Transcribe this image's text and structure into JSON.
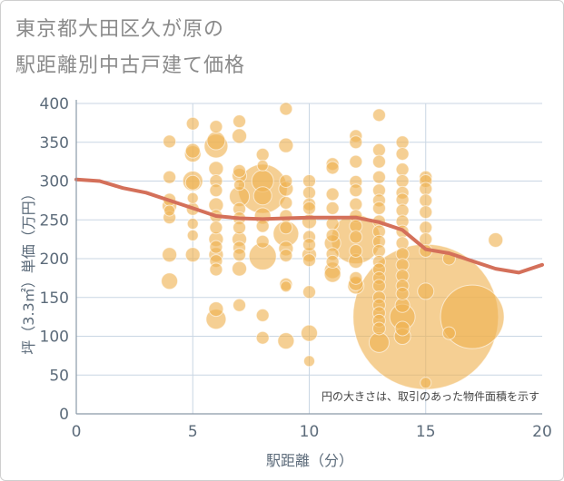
{
  "title_line1": "東京都大田区久が原の",
  "title_line2": "駅距離別中古戸建て価格",
  "chart_data": {
    "type": "scatter",
    "xlabel": "駅距離（分）",
    "ylabel": "坪（3.3㎡）単価（万円）",
    "xlim": [
      0,
      20
    ],
    "ylim": [
      0,
      400
    ],
    "xticks": [
      0,
      5,
      10,
      15,
      20
    ],
    "yticks": [
      0,
      50,
      100,
      150,
      200,
      250,
      300,
      350,
      400
    ],
    "grid": true,
    "note": "円の大きさは、取引のあった物件面積を示す",
    "colors": {
      "bubble": "#efb251",
      "line": "#d4705a",
      "grid": "#c9d6e3"
    },
    "trend_line": {
      "x": [
        0,
        1,
        2,
        3,
        4,
        5,
        6,
        7,
        8,
        9,
        10,
        11,
        12,
        13,
        14,
        15,
        16,
        17,
        18,
        19,
        20
      ],
      "y": [
        302,
        300,
        291,
        285,
        275,
        265,
        255,
        252,
        251,
        252,
        253,
        253,
        253,
        247,
        237,
        212,
        207,
        197,
        187,
        182,
        192
      ]
    },
    "points": [
      {
        "x": 4,
        "y": 351,
        "r": 7
      },
      {
        "x": 4,
        "y": 305,
        "r": 7
      },
      {
        "x": 4,
        "y": 276,
        "r": 7
      },
      {
        "x": 4,
        "y": 268,
        "r": 8
      },
      {
        "x": 4,
        "y": 262,
        "r": 6
      },
      {
        "x": 4,
        "y": 253,
        "r": 7
      },
      {
        "x": 4,
        "y": 205,
        "r": 8
      },
      {
        "x": 4,
        "y": 171,
        "r": 9
      },
      {
        "x": 5,
        "y": 374,
        "r": 7
      },
      {
        "x": 5,
        "y": 339,
        "r": 8
      },
      {
        "x": 5,
        "y": 335,
        "r": 9
      },
      {
        "x": 5,
        "y": 300,
        "r": 11
      },
      {
        "x": 5,
        "y": 298,
        "r": 8
      },
      {
        "x": 5,
        "y": 278,
        "r": 6
      },
      {
        "x": 5,
        "y": 264,
        "r": 7
      },
      {
        "x": 5,
        "y": 245,
        "r": 6
      },
      {
        "x": 5,
        "y": 230,
        "r": 6
      },
      {
        "x": 5,
        "y": 205,
        "r": 8
      },
      {
        "x": 6,
        "y": 370,
        "r": 7
      },
      {
        "x": 6,
        "y": 352,
        "r": 10
      },
      {
        "x": 6,
        "y": 345,
        "r": 13
      },
      {
        "x": 6,
        "y": 316,
        "r": 8
      },
      {
        "x": 6,
        "y": 300,
        "r": 7
      },
      {
        "x": 6,
        "y": 288,
        "r": 7
      },
      {
        "x": 6,
        "y": 269,
        "r": 8
      },
      {
        "x": 6,
        "y": 255,
        "r": 7
      },
      {
        "x": 6,
        "y": 240,
        "r": 7
      },
      {
        "x": 6,
        "y": 225,
        "r": 8
      },
      {
        "x": 6,
        "y": 215,
        "r": 7
      },
      {
        "x": 6,
        "y": 205,
        "r": 8
      },
      {
        "x": 6,
        "y": 197,
        "r": 7
      },
      {
        "x": 6,
        "y": 186,
        "r": 7
      },
      {
        "x": 6,
        "y": 135,
        "r": 8
      },
      {
        "x": 6,
        "y": 122,
        "r": 11
      },
      {
        "x": 7,
        "y": 377,
        "r": 7
      },
      {
        "x": 7,
        "y": 358,
        "r": 8
      },
      {
        "x": 7,
        "y": 313,
        "r": 7
      },
      {
        "x": 7,
        "y": 307,
        "r": 8
      },
      {
        "x": 7,
        "y": 295,
        "r": 6
      },
      {
        "x": 7,
        "y": 280,
        "r": 11
      },
      {
        "x": 7,
        "y": 264,
        "r": 7
      },
      {
        "x": 7,
        "y": 252,
        "r": 7
      },
      {
        "x": 7,
        "y": 240,
        "r": 7
      },
      {
        "x": 7,
        "y": 225,
        "r": 8
      },
      {
        "x": 7,
        "y": 214,
        "r": 7
      },
      {
        "x": 7,
        "y": 205,
        "r": 7
      },
      {
        "x": 7,
        "y": 187,
        "r": 8
      },
      {
        "x": 7,
        "y": 140,
        "r": 7
      },
      {
        "x": 8,
        "y": 334,
        "r": 7
      },
      {
        "x": 8,
        "y": 320,
        "r": 6
      },
      {
        "x": 8,
        "y": 300,
        "r": 12
      },
      {
        "x": 8,
        "y": 290,
        "r": 27
      },
      {
        "x": 8,
        "y": 281,
        "r": 10
      },
      {
        "x": 8,
        "y": 255,
        "r": 9
      },
      {
        "x": 8,
        "y": 242,
        "r": 7
      },
      {
        "x": 8,
        "y": 222,
        "r": 7
      },
      {
        "x": 8,
        "y": 203,
        "r": 15
      },
      {
        "x": 8,
        "y": 127,
        "r": 7
      },
      {
        "x": 8,
        "y": 98,
        "r": 7
      },
      {
        "x": 9,
        "y": 393,
        "r": 7
      },
      {
        "x": 9,
        "y": 346,
        "r": 8
      },
      {
        "x": 9,
        "y": 300,
        "r": 7
      },
      {
        "x": 9,
        "y": 290,
        "r": 8
      },
      {
        "x": 9,
        "y": 272,
        "r": 7
      },
      {
        "x": 9,
        "y": 255,
        "r": 7
      },
      {
        "x": 9,
        "y": 240,
        "r": 7
      },
      {
        "x": 9,
        "y": 232,
        "r": 14
      },
      {
        "x": 9,
        "y": 213,
        "r": 8
      },
      {
        "x": 9,
        "y": 204,
        "r": 7
      },
      {
        "x": 9,
        "y": 167,
        "r": 7
      },
      {
        "x": 9,
        "y": 164,
        "r": 6
      },
      {
        "x": 9,
        "y": 94,
        "r": 9
      },
      {
        "x": 10,
        "y": 300,
        "r": 7
      },
      {
        "x": 10,
        "y": 285,
        "r": 7
      },
      {
        "x": 10,
        "y": 270,
        "r": 7
      },
      {
        "x": 10,
        "y": 265,
        "r": 7
      },
      {
        "x": 10,
        "y": 248,
        "r": 8
      },
      {
        "x": 10,
        "y": 228,
        "r": 7
      },
      {
        "x": 10,
        "y": 218,
        "r": 7
      },
      {
        "x": 10,
        "y": 205,
        "r": 8
      },
      {
        "x": 10,
        "y": 198,
        "r": 7
      },
      {
        "x": 10,
        "y": 157,
        "r": 7
      },
      {
        "x": 10,
        "y": 104,
        "r": 9
      },
      {
        "x": 10,
        "y": 68,
        "r": 6
      },
      {
        "x": 11,
        "y": 322,
        "r": 7
      },
      {
        "x": 11,
        "y": 317,
        "r": 7
      },
      {
        "x": 11,
        "y": 283,
        "r": 7
      },
      {
        "x": 11,
        "y": 265,
        "r": 7
      },
      {
        "x": 11,
        "y": 245,
        "r": 7
      },
      {
        "x": 11,
        "y": 230,
        "r": 7
      },
      {
        "x": 11,
        "y": 220,
        "r": 9
      },
      {
        "x": 11,
        "y": 206,
        "r": 7
      },
      {
        "x": 11,
        "y": 196,
        "r": 7
      },
      {
        "x": 11,
        "y": 185,
        "r": 9
      },
      {
        "x": 11,
        "y": 180,
        "r": 9
      },
      {
        "x": 12,
        "y": 358,
        "r": 7
      },
      {
        "x": 12,
        "y": 350,
        "r": 7
      },
      {
        "x": 12,
        "y": 325,
        "r": 7
      },
      {
        "x": 12,
        "y": 299,
        "r": 7
      },
      {
        "x": 12,
        "y": 288,
        "r": 7
      },
      {
        "x": 12,
        "y": 270,
        "r": 7
      },
      {
        "x": 12,
        "y": 255,
        "r": 7
      },
      {
        "x": 12,
        "y": 242,
        "r": 7
      },
      {
        "x": 12,
        "y": 228,
        "r": 7
      },
      {
        "x": 12,
        "y": 225,
        "r": 27
      },
      {
        "x": 12,
        "y": 210,
        "r": 7
      },
      {
        "x": 12,
        "y": 197,
        "r": 8
      },
      {
        "x": 12,
        "y": 175,
        "r": 7
      },
      {
        "x": 12,
        "y": 168,
        "r": 8
      },
      {
        "x": 12,
        "y": 165,
        "r": 9
      },
      {
        "x": 13,
        "y": 385,
        "r": 7
      },
      {
        "x": 13,
        "y": 340,
        "r": 7
      },
      {
        "x": 13,
        "y": 325,
        "r": 7
      },
      {
        "x": 13,
        "y": 305,
        "r": 7
      },
      {
        "x": 13,
        "y": 288,
        "r": 7
      },
      {
        "x": 13,
        "y": 275,
        "r": 7
      },
      {
        "x": 13,
        "y": 265,
        "r": 7
      },
      {
        "x": 13,
        "y": 248,
        "r": 7
      },
      {
        "x": 13,
        "y": 235,
        "r": 7
      },
      {
        "x": 13,
        "y": 222,
        "r": 7
      },
      {
        "x": 13,
        "y": 210,
        "r": 7
      },
      {
        "x": 13,
        "y": 196,
        "r": 7
      },
      {
        "x": 13,
        "y": 186,
        "r": 7
      },
      {
        "x": 13,
        "y": 175,
        "r": 7
      },
      {
        "x": 13,
        "y": 165,
        "r": 7
      },
      {
        "x": 13,
        "y": 150,
        "r": 7
      },
      {
        "x": 13,
        "y": 140,
        "r": 7
      },
      {
        "x": 13,
        "y": 130,
        "r": 7
      },
      {
        "x": 13,
        "y": 120,
        "r": 7
      },
      {
        "x": 13,
        "y": 110,
        "r": 7
      },
      {
        "x": 13,
        "y": 92,
        "r": 11
      },
      {
        "x": 14,
        "y": 350,
        "r": 7
      },
      {
        "x": 14,
        "y": 335,
        "r": 7
      },
      {
        "x": 14,
        "y": 315,
        "r": 7
      },
      {
        "x": 14,
        "y": 300,
        "r": 7
      },
      {
        "x": 14,
        "y": 285,
        "r": 7
      },
      {
        "x": 14,
        "y": 276,
        "r": 7
      },
      {
        "x": 14,
        "y": 262,
        "r": 7
      },
      {
        "x": 14,
        "y": 248,
        "r": 7
      },
      {
        "x": 14,
        "y": 235,
        "r": 7
      },
      {
        "x": 14,
        "y": 220,
        "r": 7
      },
      {
        "x": 14,
        "y": 206,
        "r": 7
      },
      {
        "x": 14,
        "y": 192,
        "r": 7
      },
      {
        "x": 14,
        "y": 178,
        "r": 7
      },
      {
        "x": 14,
        "y": 165,
        "r": 7
      },
      {
        "x": 14,
        "y": 155,
        "r": 7
      },
      {
        "x": 14,
        "y": 140,
        "r": 8
      },
      {
        "x": 14,
        "y": 125,
        "r": 14
      },
      {
        "x": 14,
        "y": 110,
        "r": 8
      },
      {
        "x": 14,
        "y": 100,
        "r": 9
      },
      {
        "x": 15,
        "y": 305,
        "r": 7
      },
      {
        "x": 15,
        "y": 300,
        "r": 7
      },
      {
        "x": 15,
        "y": 290,
        "r": 7
      },
      {
        "x": 15,
        "y": 275,
        "r": 7
      },
      {
        "x": 15,
        "y": 260,
        "r": 7
      },
      {
        "x": 15,
        "y": 240,
        "r": 7
      },
      {
        "x": 15,
        "y": 225,
        "r": 7
      },
      {
        "x": 15,
        "y": 210,
        "r": 7
      },
      {
        "x": 15,
        "y": 158,
        "r": 9
      },
      {
        "x": 15,
        "y": 125,
        "r": 80
      },
      {
        "x": 15,
        "y": 40,
        "r": 6
      },
      {
        "x": 16,
        "y": 200,
        "r": 7
      },
      {
        "x": 16,
        "y": 104,
        "r": 7
      },
      {
        "x": 17,
        "y": 125,
        "r": 35
      },
      {
        "x": 18,
        "y": 224,
        "r": 8
      }
    ]
  }
}
